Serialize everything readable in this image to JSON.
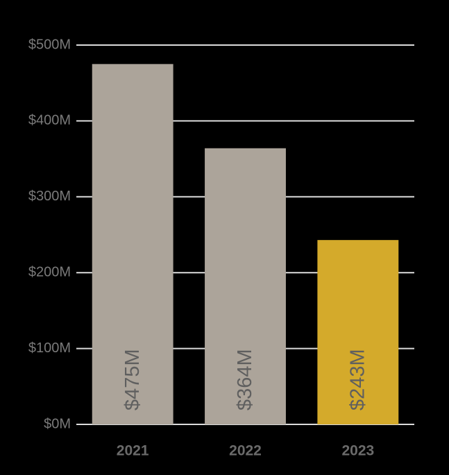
{
  "chart_data": {
    "type": "bar",
    "categories": [
      "2021",
      "2022",
      "2023"
    ],
    "values": [
      475,
      364,
      243
    ],
    "value_labels": [
      "$475M",
      "$364M",
      "$243M"
    ],
    "colors": [
      "#aca49a",
      "#aca49a",
      "#d4aa2b"
    ],
    "ylim": [
      0,
      500
    ],
    "yticks": [
      {
        "value": 0,
        "label": "$0M"
      },
      {
        "value": 100,
        "label": "$100M"
      },
      {
        "value": 200,
        "label": "$200M"
      },
      {
        "value": 300,
        "label": "$300M"
      },
      {
        "value": 400,
        "label": "$400M"
      },
      {
        "value": 500,
        "label": "$500M"
      }
    ],
    "grid": true
  }
}
